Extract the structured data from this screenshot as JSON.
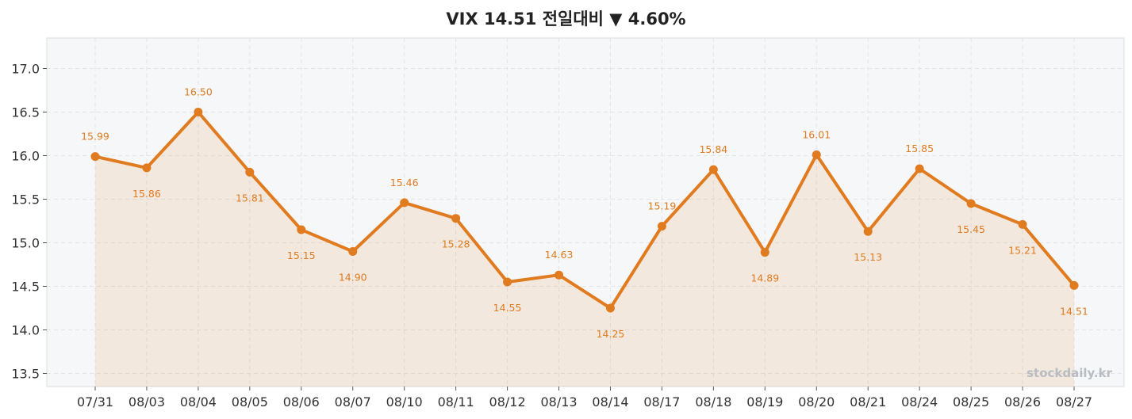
{
  "chart_data": {
    "type": "line",
    "title": "VIX  14.51  전일대비 ▼ 4.60%",
    "xlabel": "",
    "ylabel": "",
    "categories": [
      "07/31",
      "08/03",
      "08/04",
      "08/05",
      "08/06",
      "08/07",
      "08/10",
      "08/11",
      "08/12",
      "08/13",
      "08/14",
      "08/17",
      "08/18",
      "08/19",
      "08/20",
      "08/21",
      "08/24",
      "08/25",
      "08/26",
      "08/27"
    ],
    "series": [
      {
        "values": [
          15.99,
          15.86,
          16.5,
          15.81,
          15.15,
          14.9,
          15.46,
          15.28,
          14.55,
          14.63,
          14.25,
          15.19,
          15.84,
          14.89,
          16.01,
          15.13,
          15.85,
          15.45,
          15.21,
          14.51
        ],
        "color": "#e07b20"
      }
    ],
    "ylim": [
      13.35,
      17.35
    ],
    "yticks": [
      13.5,
      14.0,
      14.5,
      15.0,
      15.5,
      16.0,
      16.5,
      17.0
    ],
    "grid": true,
    "area_fill": true,
    "plot_background": "#f6f7f9",
    "label_color": "#e07b20",
    "watermark": "stockdaily.kr"
  }
}
